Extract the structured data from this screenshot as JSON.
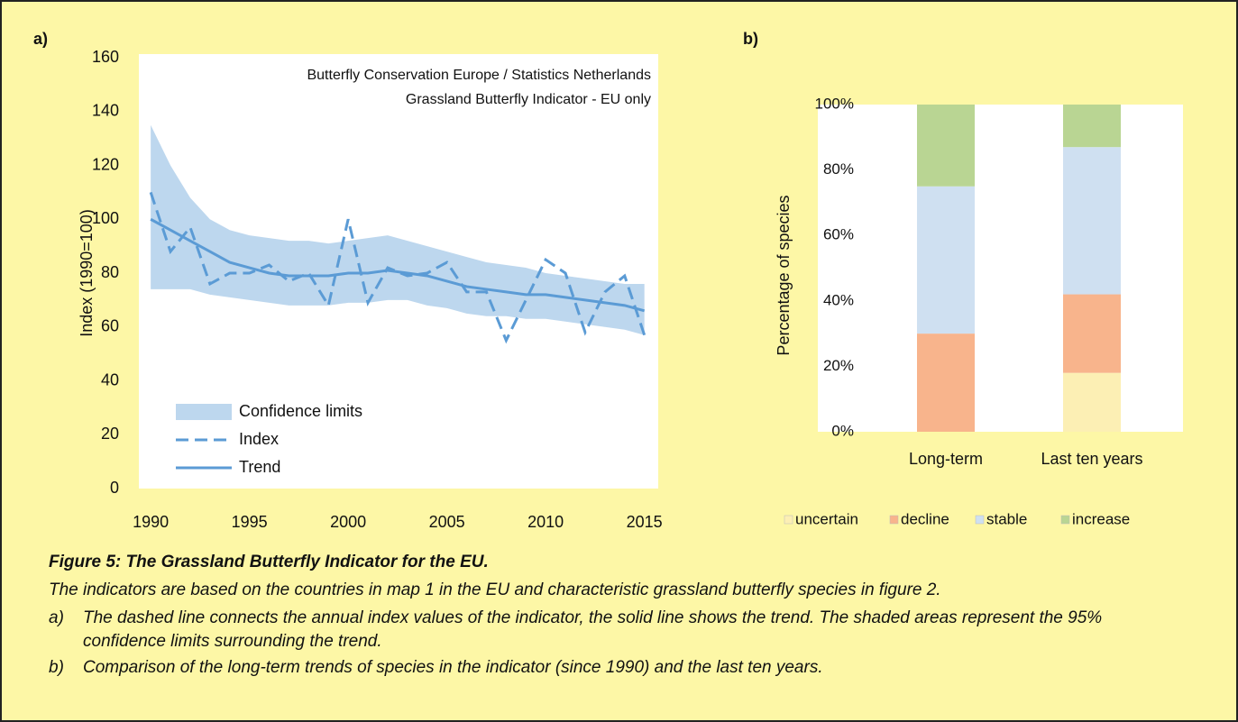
{
  "chart_data": [
    {
      "type": "line",
      "panel": "a)",
      "annotations": [
        "Butterfly Conservation Europe / Statistics Netherlands",
        "Grassland Butterfly Indicator - EU only"
      ],
      "ylabel": "Index (1990=100)",
      "x": [
        1990,
        1991,
        1992,
        1993,
        1994,
        1995,
        1996,
        1997,
        1998,
        1999,
        2000,
        2001,
        2002,
        2003,
        2004,
        2005,
        2006,
        2007,
        2008,
        2009,
        2010,
        2011,
        2012,
        2013,
        2014,
        2015
      ],
      "series": [
        {
          "name": "Confidence limits",
          "color": "#bdd7ee",
          "style": "band",
          "upper": [
            135,
            120,
            108,
            100,
            96,
            94,
            93,
            92,
            92,
            91,
            92,
            93,
            94,
            92,
            90,
            88,
            86,
            84,
            83,
            82,
            80,
            79,
            78,
            77,
            76,
            76
          ],
          "lower": [
            74,
            74,
            74,
            72,
            71,
            70,
            69,
            68,
            68,
            68,
            69,
            69,
            70,
            70,
            68,
            67,
            65,
            64,
            64,
            63,
            63,
            62,
            61,
            60,
            59,
            57
          ]
        },
        {
          "name": "Index",
          "color": "#5b9bd5",
          "style": "dashed",
          "values": [
            110,
            88,
            97,
            76,
            80,
            80,
            83,
            77,
            80,
            68,
            100,
            69,
            82,
            79,
            80,
            84,
            73,
            73,
            55,
            70,
            85,
            80,
            58,
            73,
            79,
            57
          ]
        },
        {
          "name": "Trend",
          "color": "#5b9bd5",
          "style": "solid",
          "values": [
            100,
            96,
            92,
            88,
            84,
            82,
            80,
            79,
            79,
            79,
            80,
            80,
            81,
            80,
            79,
            77,
            75,
            74,
            73,
            72,
            72,
            71,
            70,
            69,
            68,
            66
          ]
        }
      ],
      "xlim": [
        1989.4,
        2015.7
      ],
      "xticks": [
        1990,
        1995,
        2000,
        2005,
        2010,
        2015
      ],
      "ylim": [
        0,
        160
      ],
      "yticks": [
        0,
        20,
        40,
        60,
        80,
        100,
        120,
        140,
        160
      ],
      "legend": "lower left",
      "grid": false
    },
    {
      "type": "bar",
      "stacked": true,
      "panel": "b)",
      "ylabel": "Percentage of species",
      "categories": [
        "Long-term",
        "Last ten years"
      ],
      "series": [
        {
          "name": "uncertain",
          "color": "#fcefb4",
          "values": [
            0,
            18
          ]
        },
        {
          "name": "decline",
          "color": "#f8b48c",
          "values": [
            30,
            24
          ]
        },
        {
          "name": "stable",
          "color": "#cfe0f1",
          "values": [
            45,
            45
          ]
        },
        {
          "name": "increase",
          "color": "#b9d593",
          "values": [
            25,
            13
          ]
        }
      ],
      "ylim": [
        0,
        100
      ],
      "yticks": [
        {
          "value": 0,
          "label": "0%"
        },
        {
          "value": 20,
          "label": "20%"
        },
        {
          "value": 40,
          "label": "40%"
        },
        {
          "value": 60,
          "label": "60%"
        },
        {
          "value": 80,
          "label": "80%"
        },
        {
          "value": 100,
          "label": "100%"
        }
      ],
      "legend": "bottom",
      "grid": false
    }
  ],
  "caption": {
    "title": "Figure 5: The Grassland Butterfly Indicator for the EU.",
    "text": "The indicators are based on the countries in map 1 in the EU and characteristic grassland butterfly species in figure 2.",
    "items": [
      {
        "label": "a)",
        "text": "The dashed line connects the annual index values of the indicator, the solid line shows the trend. The shaded areas represent the 95% confidence limits surrounding the trend."
      },
      {
        "label": "b)",
        "text": "Comparison of the long-term trends of species in the indicator (since 1990) and the last ten years."
      }
    ]
  }
}
